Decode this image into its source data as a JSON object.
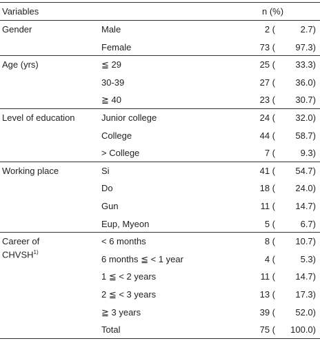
{
  "header": {
    "variable": "Variables",
    "value": "n (%)"
  },
  "groups": [
    {
      "label": "Gender",
      "rows": [
        {
          "category": "Male",
          "n": "2 (",
          "pct": "2.7)"
        },
        {
          "category": "Female",
          "n": "73 (",
          "pct": "97.3)"
        }
      ]
    },
    {
      "label": "Age (yrs)",
      "rows": [
        {
          "category": "≦ 29",
          "n": "25 (",
          "pct": "33.3)"
        },
        {
          "category": "30-39",
          "n": "27 (",
          "pct": "36.0)"
        },
        {
          "category": "≧ 40",
          "n": "23 (",
          "pct": "30.7)"
        }
      ]
    },
    {
      "label": "Level of education",
      "rows": [
        {
          "category": "Junior college",
          "n": "24 (",
          "pct": "32.0)"
        },
        {
          "category": "College",
          "n": "44 (",
          "pct": "58.7)"
        },
        {
          "category": "> College",
          "n": "7 (",
          "pct": "9.3)"
        }
      ]
    },
    {
      "label": "Working place",
      "rows": [
        {
          "category": "Si",
          "n": "41 (",
          "pct": "54.7)"
        },
        {
          "category": "Do",
          "n": "18 (",
          "pct": "24.0)"
        },
        {
          "category": "Gun",
          "n": "11 (",
          "pct": "14.7)"
        },
        {
          "category": "Eup, Myeon",
          "n": "5 (",
          "pct": "6.7)"
        }
      ]
    },
    {
      "label": "Career of CHVSH",
      "sup": "1)",
      "rows": [
        {
          "category": "< 6 months",
          "n": "8 (",
          "pct": "10.7)"
        },
        {
          "category": "6 months ≦ < 1 year",
          "n": "4 (",
          "pct": "5.3)"
        },
        {
          "category": "1 ≦ < 2 years",
          "n": "11 (",
          "pct": "14.7)"
        },
        {
          "category": "2 ≦ < 3 years",
          "n": "13 (",
          "pct": "17.3)"
        },
        {
          "category": "≧ 3 years",
          "n": "39 (",
          "pct": "52.0)"
        },
        {
          "category": "Total",
          "n": "75 (",
          "pct": "100.0)"
        }
      ]
    }
  ]
}
